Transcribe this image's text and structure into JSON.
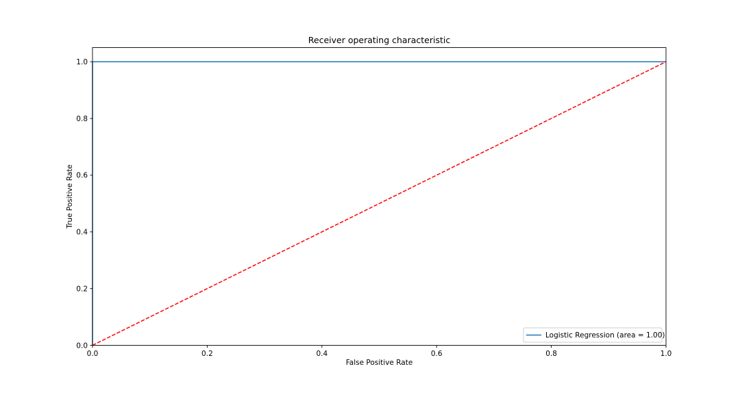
{
  "chart_data": {
    "type": "line",
    "title": "Receiver operating characteristic",
    "xlabel": "False Positive Rate",
    "ylabel": "True Positive Rate",
    "xlim": [
      0.0,
      1.0
    ],
    "ylim": [
      0.0,
      1.05
    ],
    "x_ticks": [
      0.0,
      0.2,
      0.4,
      0.6,
      0.8,
      1.0
    ],
    "y_ticks": [
      0.0,
      0.2,
      0.4,
      0.6,
      0.8,
      1.0
    ],
    "x_tick_labels": [
      "0.0",
      "0.2",
      "0.4",
      "0.6",
      "0.8",
      "1.0"
    ],
    "y_tick_labels": [
      "0.0",
      "0.2",
      "0.4",
      "0.6",
      "0.8",
      "1.0"
    ],
    "grid": false,
    "legend_position": "lower-right",
    "series": [
      {
        "name": "Logistic Regression (area = 1.00)",
        "color": "#1f77b4",
        "style": "solid",
        "x": [
          0.0,
          0.0,
          1.0
        ],
        "y": [
          0.0,
          1.0,
          1.0
        ]
      },
      {
        "color": "#ff0000",
        "style": "dashed",
        "x": [
          0.0,
          1.0
        ],
        "y": [
          0.0,
          1.0
        ]
      }
    ]
  }
}
